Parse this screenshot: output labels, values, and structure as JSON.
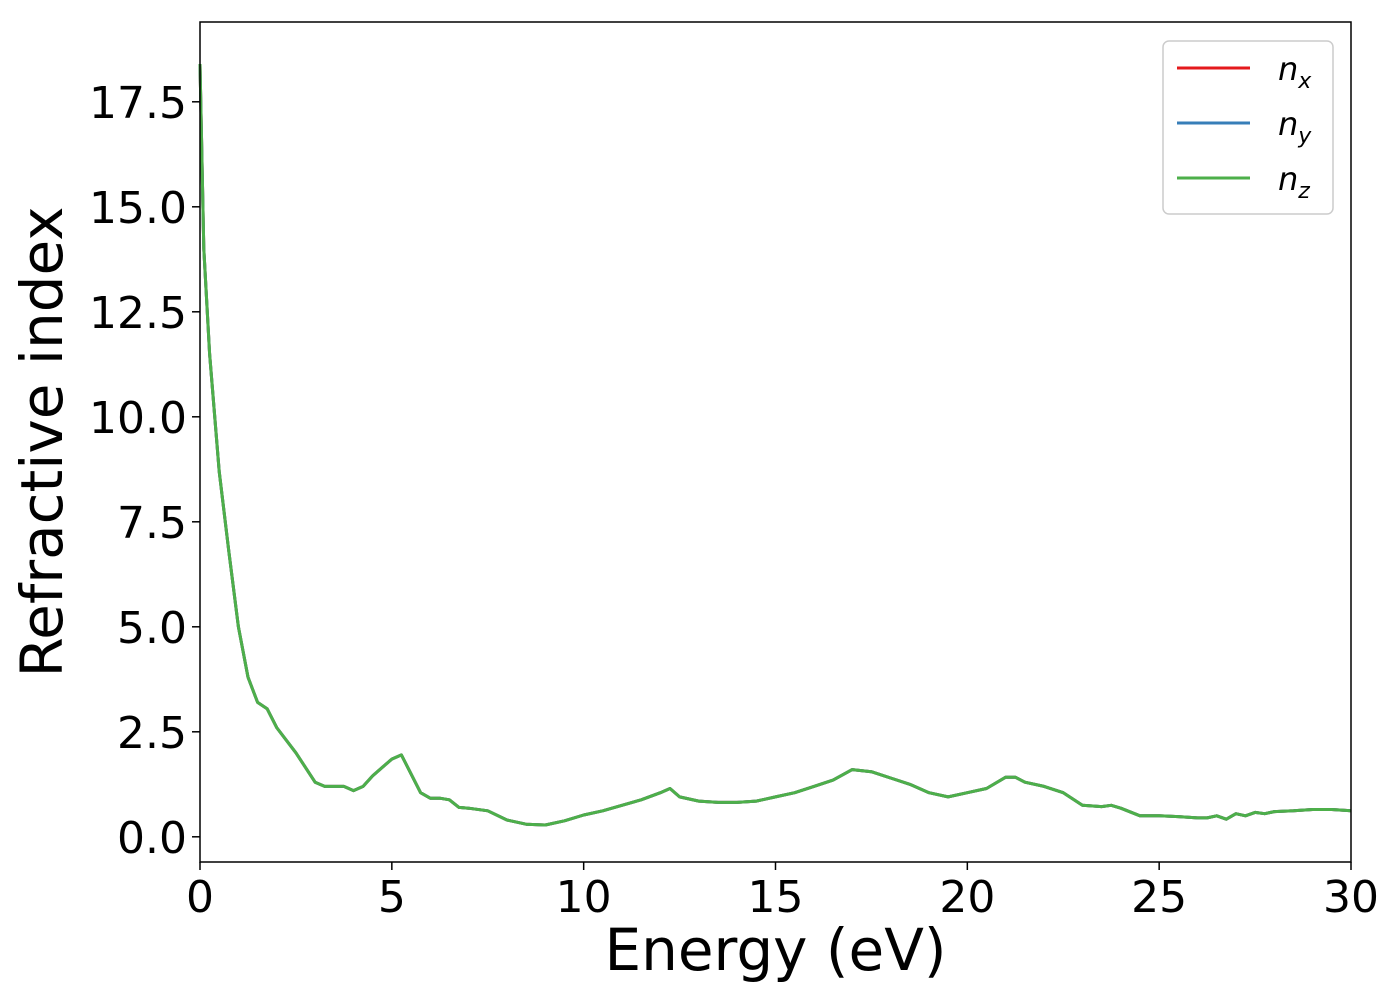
{
  "chart_data": {
    "type": "line",
    "title": "",
    "xlabel": "Energy (eV)",
    "ylabel": "Refractive index",
    "xlim": [
      0,
      30
    ],
    "ylim": [
      -0.6,
      19.4
    ],
    "xticks": [
      0,
      5,
      10,
      15,
      20,
      25,
      30
    ],
    "xtick_labels": [
      "0",
      "5",
      "10",
      "15",
      "20",
      "25",
      "30"
    ],
    "yticks": [
      0.0,
      2.5,
      5.0,
      7.5,
      10.0,
      12.5,
      15.0,
      17.5
    ],
    "ytick_labels": [
      "0.0",
      "2.5",
      "5.0",
      "7.5",
      "10.0",
      "12.5",
      "15.0",
      "17.5"
    ],
    "grid": false,
    "legend_position": "top-right",
    "x": [
      0,
      0.1,
      0.25,
      0.5,
      0.75,
      1.0,
      1.25,
      1.5,
      1.75,
      2.0,
      2.5,
      3.0,
      3.25,
      3.5,
      3.75,
      4.0,
      4.25,
      4.5,
      5.0,
      5.25,
      5.5,
      5.75,
      6.0,
      6.25,
      6.5,
      6.75,
      7.0,
      7.5,
      8.0,
      8.5,
      9.0,
      9.5,
      10.0,
      10.5,
      11.0,
      11.5,
      12.0,
      12.25,
      12.5,
      13.0,
      13.5,
      14.0,
      14.5,
      15.0,
      15.5,
      16.0,
      16.5,
      17.0,
      17.5,
      18.0,
      18.5,
      19.0,
      19.5,
      20.0,
      20.5,
      21.0,
      21.25,
      21.5,
      22.0,
      22.5,
      23.0,
      23.5,
      23.75,
      24.0,
      24.5,
      25.0,
      25.5,
      26.0,
      26.25,
      26.5,
      26.75,
      27.0,
      27.25,
      27.5,
      27.75,
      28.0,
      28.5,
      29.0,
      29.5,
      30.0
    ],
    "series": [
      {
        "name": "x",
        "color": "#e41a1c",
        "values": [
          18.4,
          14.0,
          11.5,
          8.7,
          6.8,
          5.0,
          3.8,
          3.2,
          3.05,
          2.6,
          2.0,
          1.3,
          1.2,
          1.2,
          1.2,
          1.1,
          1.2,
          1.45,
          1.85,
          1.95,
          1.5,
          1.05,
          0.92,
          0.92,
          0.88,
          0.7,
          0.68,
          0.62,
          0.4,
          0.3,
          0.28,
          0.38,
          0.52,
          0.62,
          0.75,
          0.88,
          1.05,
          1.15,
          0.95,
          0.85,
          0.82,
          0.82,
          0.85,
          0.95,
          1.05,
          1.2,
          1.35,
          1.6,
          1.55,
          1.4,
          1.25,
          1.05,
          0.95,
          1.05,
          1.15,
          1.42,
          1.42,
          1.3,
          1.2,
          1.05,
          0.75,
          0.72,
          0.75,
          0.68,
          0.5,
          0.5,
          0.48,
          0.45,
          0.45,
          0.5,
          0.42,
          0.55,
          0.5,
          0.58,
          0.55,
          0.6,
          0.62,
          0.65,
          0.65,
          0.62
        ]
      },
      {
        "name": "y",
        "color": "#377eb8",
        "values": [
          18.4,
          14.0,
          11.5,
          8.7,
          6.8,
          5.0,
          3.8,
          3.2,
          3.05,
          2.6,
          2.0,
          1.3,
          1.2,
          1.2,
          1.2,
          1.1,
          1.2,
          1.45,
          1.85,
          1.95,
          1.5,
          1.05,
          0.92,
          0.92,
          0.88,
          0.7,
          0.68,
          0.62,
          0.4,
          0.3,
          0.28,
          0.38,
          0.52,
          0.62,
          0.75,
          0.88,
          1.05,
          1.15,
          0.95,
          0.85,
          0.82,
          0.82,
          0.85,
          0.95,
          1.05,
          1.2,
          1.35,
          1.6,
          1.55,
          1.4,
          1.25,
          1.05,
          0.95,
          1.05,
          1.15,
          1.42,
          1.42,
          1.3,
          1.2,
          1.05,
          0.75,
          0.72,
          0.75,
          0.68,
          0.5,
          0.5,
          0.48,
          0.45,
          0.45,
          0.5,
          0.42,
          0.55,
          0.5,
          0.58,
          0.55,
          0.6,
          0.62,
          0.65,
          0.65,
          0.62
        ]
      },
      {
        "name": "z",
        "color": "#4daf4a",
        "values": [
          18.4,
          14.0,
          11.5,
          8.7,
          6.8,
          5.0,
          3.8,
          3.2,
          3.05,
          2.6,
          2.0,
          1.3,
          1.2,
          1.2,
          1.2,
          1.1,
          1.2,
          1.45,
          1.85,
          1.95,
          1.5,
          1.05,
          0.92,
          0.92,
          0.88,
          0.7,
          0.68,
          0.62,
          0.4,
          0.3,
          0.28,
          0.38,
          0.52,
          0.62,
          0.75,
          0.88,
          1.05,
          1.15,
          0.95,
          0.85,
          0.82,
          0.82,
          0.85,
          0.95,
          1.05,
          1.2,
          1.35,
          1.6,
          1.55,
          1.4,
          1.25,
          1.05,
          0.95,
          1.05,
          1.15,
          1.42,
          1.42,
          1.3,
          1.2,
          1.05,
          0.75,
          0.72,
          0.75,
          0.68,
          0.5,
          0.5,
          0.48,
          0.45,
          0.45,
          0.5,
          0.42,
          0.55,
          0.5,
          0.58,
          0.55,
          0.6,
          0.62,
          0.65,
          0.65,
          0.62
        ]
      }
    ],
    "legend": [
      {
        "symbol": "n",
        "subscript": "x",
        "color": "#e41a1c"
      },
      {
        "symbol": "n",
        "subscript": "y",
        "color": "#377eb8"
      },
      {
        "symbol": "n",
        "subscript": "z",
        "color": "#4daf4a"
      }
    ]
  }
}
